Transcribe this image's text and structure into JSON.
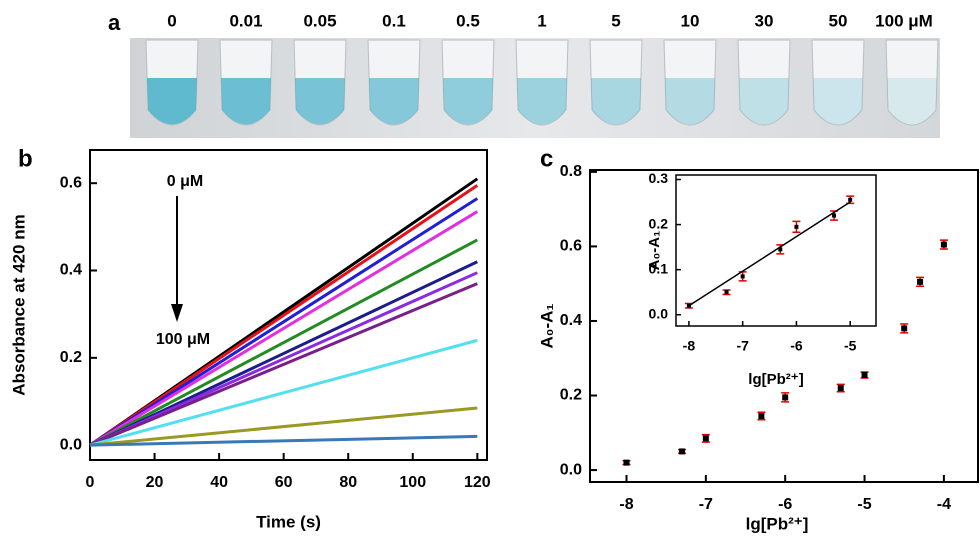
{
  "panel_a": {
    "label": "a",
    "concentrations": [
      "0",
      "0.01",
      "0.05",
      "0.1",
      "0.5",
      "1",
      "5",
      "10",
      "30",
      "50",
      "100 μM"
    ]
  },
  "chart_data": [
    {
      "type": "line",
      "label": "b",
      "x_label": "Time (s)",
      "y_label": "Absorbance at 420 nm",
      "annotations": [
        "0 μM",
        "100 μM"
      ],
      "xlim": [
        0,
        123
      ],
      "xticks": [
        0,
        20,
        40,
        60,
        80,
        100,
        120
      ],
      "ylim": [
        -0.034,
        0.676
      ],
      "yticks": [
        {
          "value": 0,
          "label": "0.0"
        },
        0.2,
        0.4,
        0.6
      ],
      "series": [
        {
          "color": "#000000",
          "x": [
            0,
            120
          ],
          "values": [
            0,
            0.61
          ]
        },
        {
          "color": "#e8111a",
          "x": [
            0,
            120
          ],
          "values": [
            0,
            0.595
          ]
        },
        {
          "color": "#1f1fd6",
          "x": [
            0,
            120
          ],
          "values": [
            0,
            0.565
          ]
        },
        {
          "color": "#e22ee0",
          "x": [
            0,
            120
          ],
          "values": [
            0,
            0.535
          ]
        },
        {
          "color": "#228b22",
          "x": [
            0,
            120
          ],
          "values": [
            0,
            0.47
          ]
        },
        {
          "color": "#1c1c8c",
          "x": [
            0,
            120
          ],
          "values": [
            0,
            0.42
          ]
        },
        {
          "color": "#8a2be2",
          "x": [
            0,
            120
          ],
          "values": [
            0,
            0.395
          ]
        },
        {
          "color": "#7a1f8a",
          "x": [
            0,
            120
          ],
          "values": [
            0,
            0.37
          ]
        },
        {
          "color": "#52e0f0",
          "x": [
            0,
            120
          ],
          "values": [
            0,
            0.24
          ]
        },
        {
          "color": "#9a9a22",
          "x": [
            0,
            120
          ],
          "values": [
            0,
            0.085
          ]
        },
        {
          "color": "#3a78b8",
          "x": [
            0,
            120
          ],
          "values": [
            0,
            0.02
          ]
        }
      ]
    },
    {
      "type": "scatter",
      "label": "c",
      "x_label": "lg[Pb²⁺]",
      "y_label": "A₀-A₁",
      "xlim": [
        -8.46,
        -3.57
      ],
      "xticks": [
        -8,
        -7,
        -6,
        -5,
        -4
      ],
      "ylim": [
        -0.032,
        0.805
      ],
      "yticks": [
        {
          "value": 0,
          "label": "0.0"
        },
        0.2,
        0.4,
        0.6,
        0.8
      ],
      "marker_color": "#000000",
      "error_color": "#e00000",
      "series": [
        {
          "x": [
            -8,
            -7.3,
            -7,
            -6.3,
            -6,
            -5.3,
            -5,
            -4.5,
            -4.3,
            -4
          ],
          "values": [
            0.02,
            0.05,
            0.085,
            0.145,
            0.195,
            0.22,
            0.255,
            0.38,
            0.505,
            0.605
          ],
          "errors": [
            0.005,
            0.005,
            0.01,
            0.01,
            0.012,
            0.01,
            0.008,
            0.012,
            0.012,
            0.012
          ]
        }
      ]
    },
    {
      "type": "scatter",
      "x_label": "lg[Pb²⁺]",
      "y_label": "A₀-A₁",
      "xlim": [
        -8.24,
        -4.52
      ],
      "xticks": [
        -8,
        -7,
        -6,
        -5
      ],
      "ylim": [
        -0.025,
        0.31
      ],
      "yticks": [
        {
          "value": 0,
          "label": "0.0"
        },
        0.1,
        0.2,
        0.3
      ],
      "marker_color": "#000000",
      "error_color": "#e00000",
      "series": [
        {
          "x": [
            -8,
            -7.3,
            -7,
            -6.3,
            -6,
            -5.3,
            -5
          ],
          "values": [
            0.02,
            0.05,
            0.085,
            0.145,
            0.195,
            0.22,
            0.255
          ],
          "errors": [
            0.005,
            0.005,
            0.01,
            0.01,
            0.012,
            0.01,
            0.008
          ]
        },
        {
          "line": true,
          "color": "#000000",
          "x": [
            -8,
            -5
          ],
          "values": [
            0.02,
            0.25
          ]
        }
      ]
    }
  ]
}
